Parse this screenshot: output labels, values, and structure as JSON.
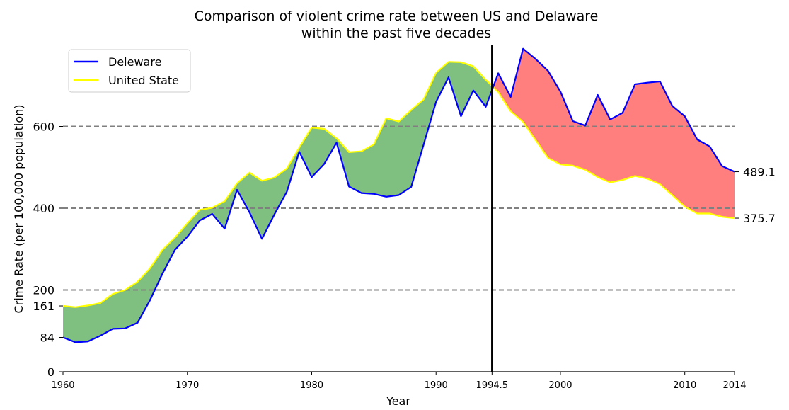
{
  "chart_data": {
    "type": "line",
    "title": [
      "Comparison of violent crime rate between US and Delaware",
      "within the past five decades"
    ],
    "xlabel": "Year",
    "ylabel": "Crime Rate (per 100,000 population)",
    "xlim": [
      1960,
      2014
    ],
    "ylim": [
      0,
      800
    ],
    "x_ticks": [
      1960,
      1970,
      1980,
      1990,
      1994.5,
      2000,
      2010,
      2014
    ],
    "y_ticks": [
      0,
      84,
      161,
      200,
      400,
      600
    ],
    "gridlines_y": [
      200,
      400,
      600
    ],
    "vertical_line_x": 1994.5,
    "legend_position": "top-left",
    "x": [
      1960,
      1961,
      1962,
      1963,
      1964,
      1965,
      1966,
      1967,
      1968,
      1969,
      1970,
      1971,
      1972,
      1973,
      1974,
      1975,
      1976,
      1977,
      1978,
      1979,
      1980,
      1981,
      1982,
      1983,
      1984,
      1985,
      1986,
      1987,
      1988,
      1989,
      1990,
      1991,
      1992,
      1993,
      1994,
      1995,
      1996,
      1997,
      1998,
      1999,
      2000,
      2001,
      2002,
      2003,
      2004,
      2005,
      2006,
      2007,
      2008,
      2009,
      2010,
      2011,
      2012,
      2013,
      2014
    ],
    "series": [
      {
        "name": "Deleware",
        "color": "#0000ff",
        "values": [
          84,
          72,
          74,
          88,
          105,
          106,
          120,
          175,
          240,
          298,
          330,
          370,
          386,
          350,
          445,
          390,
          325,
          385,
          440,
          538,
          476,
          508,
          560,
          453,
          437,
          435,
          428,
          432,
          452,
          555,
          660,
          720,
          625,
          688,
          648,
          730,
          672,
          790,
          765,
          736,
          685,
          613,
          602,
          677,
          617,
          633,
          703,
          707,
          710,
          650,
          625,
          568,
          551,
          503,
          489.1
        ]
      },
      {
        "name": "United State",
        "color": "#ffff00",
        "values": [
          161,
          158,
          162,
          168,
          190,
          200,
          220,
          253,
          298,
          328,
          363,
          396,
          401,
          417,
          461,
          487,
          467,
          475,
          497,
          548,
          597,
          594,
          571,
          537,
          539,
          556,
          620,
          612,
          640,
          666,
          731,
          758,
          757,
          747,
          714,
          684,
          637,
          611,
          567,
          523,
          507,
          504,
          494,
          476,
          463,
          469,
          479,
          472,
          459,
          432,
          404,
          387,
          387,
          379,
          375.7
        ]
      }
    ],
    "end_labels": [
      "489.1",
      "375.7"
    ],
    "fill_colors": {
      "us_above": "#008000",
      "de_above": "#ff0000"
    }
  }
}
